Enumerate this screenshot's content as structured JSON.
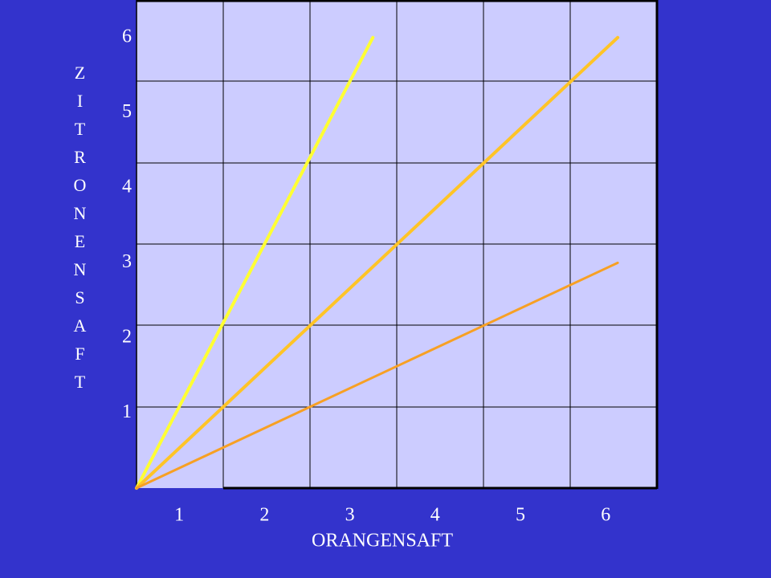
{
  "chart_data": {
    "type": "line",
    "xlabel": "ORANGENSAFT",
    "ylabel": "ZITRONENSAFT",
    "xlim": [
      0.5,
      6.6
    ],
    "ylim": [
      0,
      6.5
    ],
    "xticks": [
      1,
      2,
      3,
      4,
      5,
      6
    ],
    "yticks": [
      1,
      2,
      3,
      4,
      5,
      6
    ],
    "series": [
      {
        "color": "#ffff33",
        "x": [
          0.5,
          3.27
        ],
        "values": [
          0,
          6
        ]
      },
      {
        "color": "#ffc426",
        "x": [
          0.5,
          6.14
        ],
        "values": [
          0,
          6
        ]
      },
      {
        "color": "#f7a024",
        "x": [
          0.5,
          6.14
        ],
        "values": [
          0,
          3
        ]
      }
    ]
  }
}
